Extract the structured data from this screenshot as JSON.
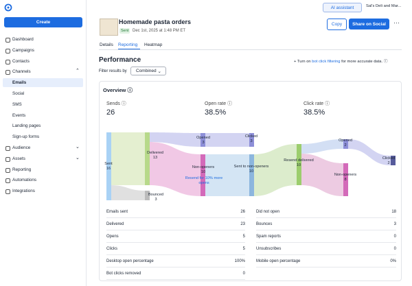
{
  "topbar": {
    "ai_button": "AI assistant",
    "account": "Sal's Deli and Mar..."
  },
  "sidebar": {
    "create": "Create",
    "items": [
      {
        "label": "Dashboard"
      },
      {
        "label": "Campaigns"
      },
      {
        "label": "Contacts"
      },
      {
        "label": "Channels"
      },
      {
        "label": "Emails",
        "sub": true,
        "active": true
      },
      {
        "label": "Social",
        "sub": true
      },
      {
        "label": "SMS",
        "sub": true
      },
      {
        "label": "Events",
        "sub": true
      },
      {
        "label": "Landing pages",
        "sub": true
      },
      {
        "label": "Sign-up forms",
        "sub": true
      },
      {
        "label": "Audience"
      },
      {
        "label": "Assets"
      },
      {
        "label": "Reporting"
      },
      {
        "label": "Automations"
      },
      {
        "label": "Integrations"
      }
    ]
  },
  "header": {
    "title": "Homemade pasta orders",
    "status": "Sent",
    "date": "Dec 1st, 2025 at 1:48 PM ET",
    "buttons": [
      "Copy",
      "Share on Social"
    ]
  },
  "tabs": [
    "Details",
    "Reporting",
    "Heatmap"
  ],
  "performance": {
    "title": "Performance",
    "notice_prefix": "+ Turn on",
    "notice_link": "bot click filtering",
    "notice_suffix": "for more accurate data.",
    "filter_label": "Filter results by",
    "filter_value": "Combined"
  },
  "overview": {
    "title": "Overview",
    "kpis": [
      {
        "label": "Sends",
        "value": "26"
      },
      {
        "label": "Open rate",
        "value": "38.5%"
      },
      {
        "label": "Click rate",
        "value": "38.5%"
      }
    ]
  },
  "sankey": {
    "nodes": [
      {
        "label": "Sent",
        "value": 16
      },
      {
        "label": "Delivered",
        "value": 13
      },
      {
        "label": "Bounced",
        "value": 3
      },
      {
        "label": "Opened",
        "value": 3
      },
      {
        "label": "Non-openers",
        "value": 10
      },
      {
        "label": "Clicked",
        "value": 3
      },
      {
        "label": "Sent to non-openers",
        "value": 10
      },
      {
        "label": "Resend delivered",
        "value": 10
      },
      {
        "label": "Opened",
        "value": 2
      },
      {
        "label": "Non-openers",
        "value": 8
      },
      {
        "label": "Clicked",
        "value": 2
      }
    ],
    "resend_link": "Resend for 10% more opens"
  },
  "stats": {
    "left": [
      [
        "Emails sent",
        "26"
      ],
      [
        "Delivered",
        "23"
      ],
      [
        "Opens",
        "5"
      ],
      [
        "Clicks",
        "5"
      ],
      [
        "Desktop open percentage",
        "100%"
      ],
      [
        "Bot clicks removed",
        "0"
      ]
    ],
    "right": [
      [
        "Did not open",
        "18"
      ],
      [
        "Bounces",
        "3"
      ],
      [
        "Spam reports",
        "0"
      ],
      [
        "Unsubscribes",
        "0"
      ],
      [
        "Mobile open percentage",
        "0%"
      ]
    ]
  }
}
